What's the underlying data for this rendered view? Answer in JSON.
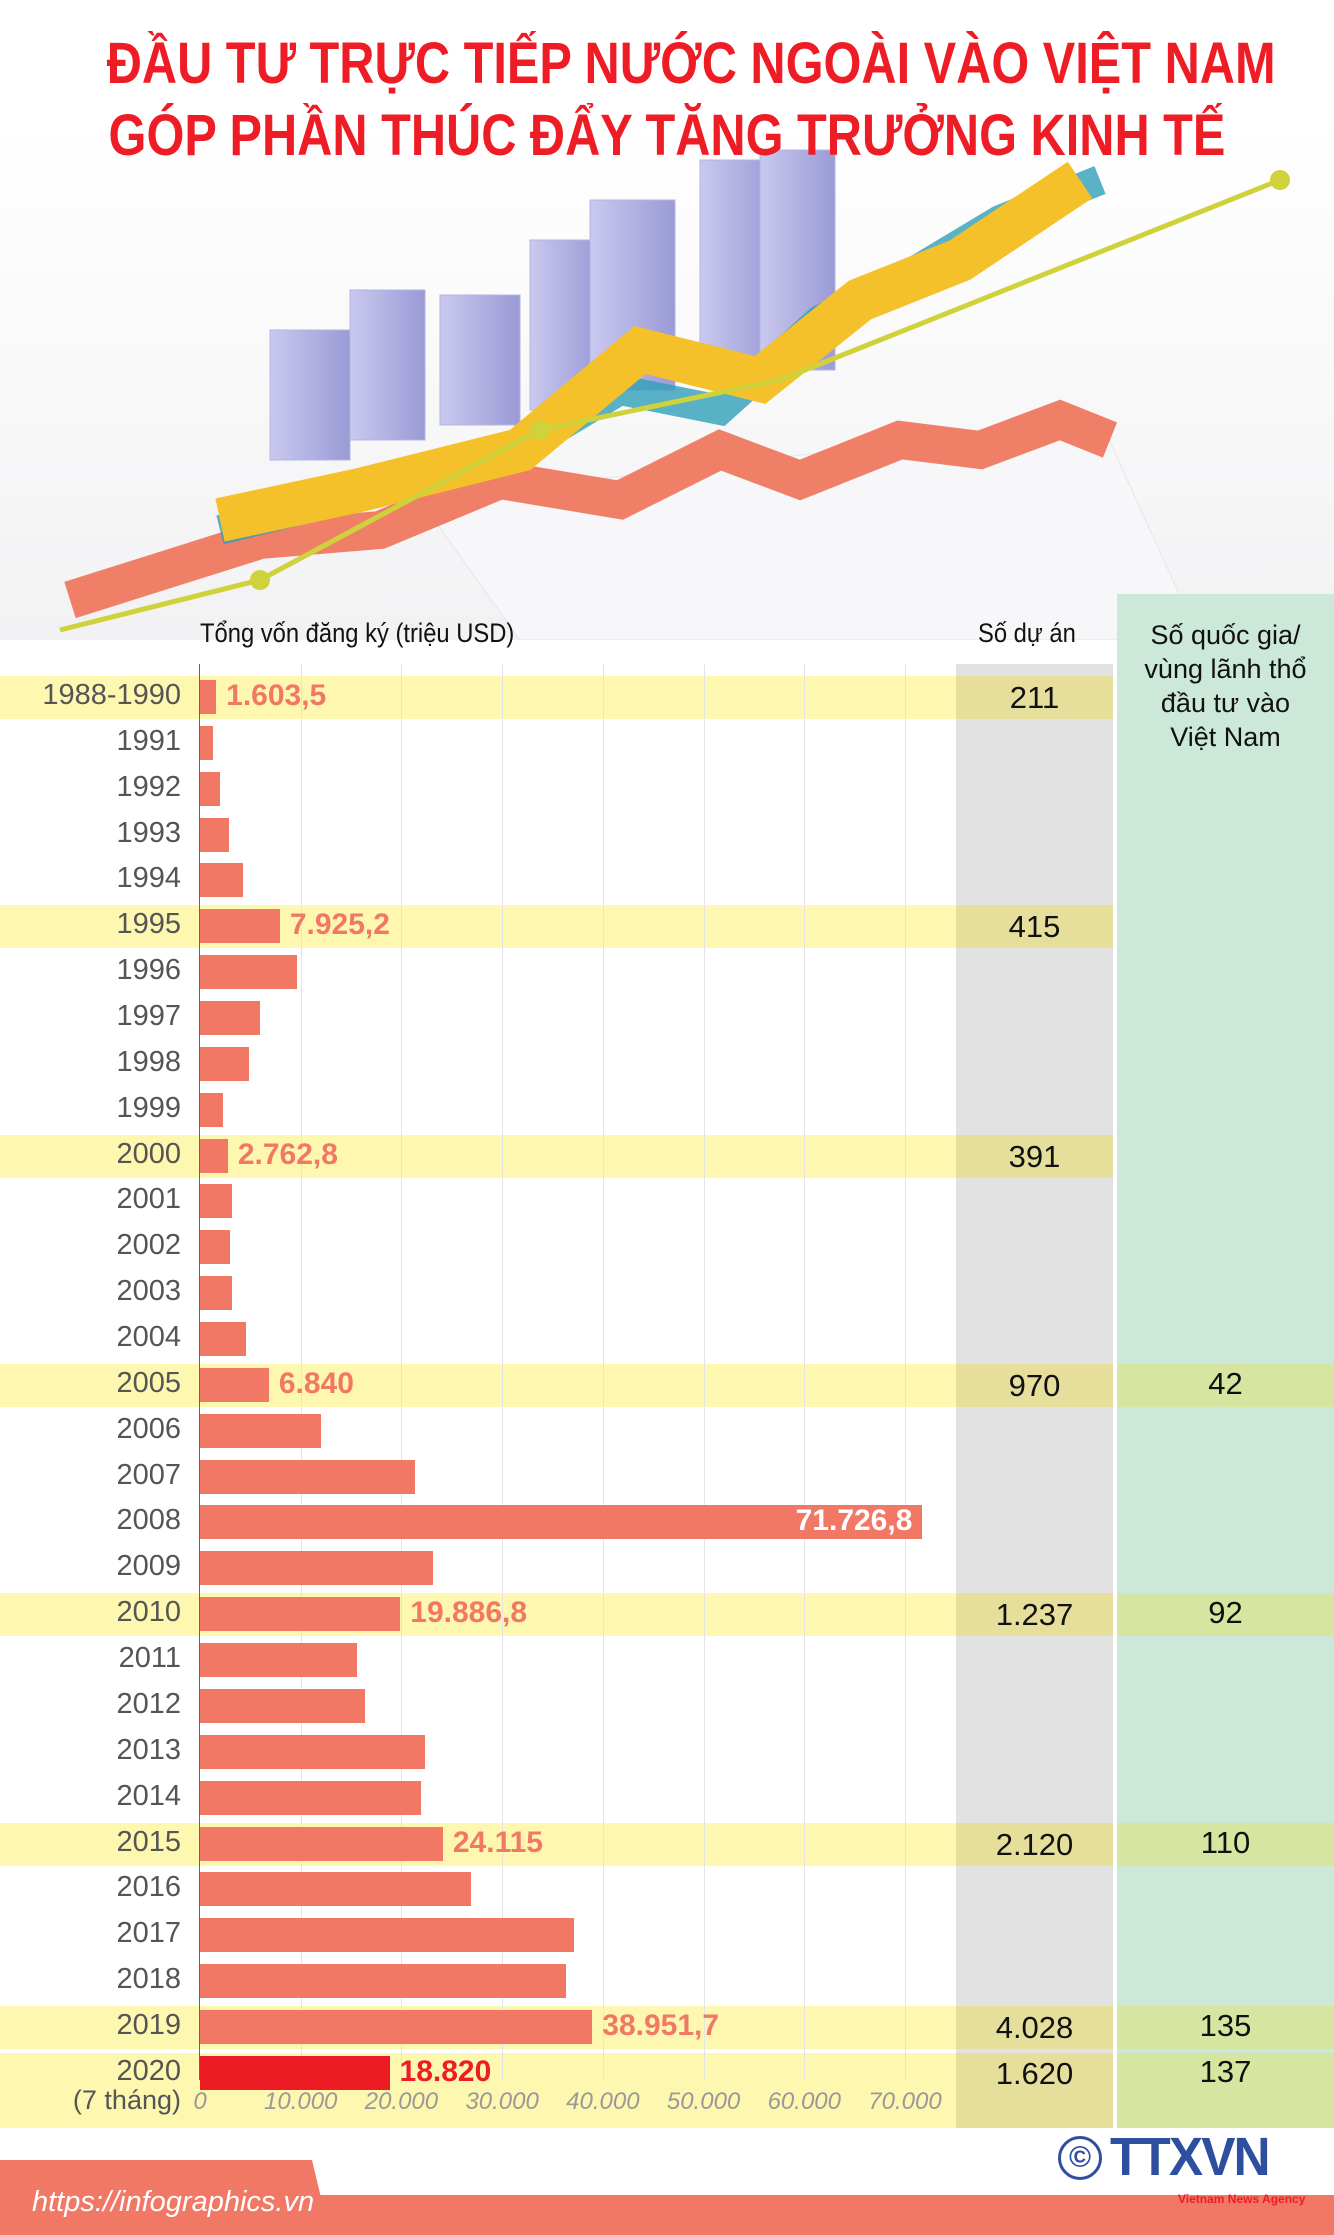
{
  "title": {
    "line1": "ĐẦU TƯ TRỰC TIẾP NƯỚC NGOÀI VÀO VIỆT NAM",
    "line2": "GÓP PHẦN THÚC ĐẨY TĂNG TRƯỞNG KINH TẾ"
  },
  "columns": {
    "capital": "Tổng vốn đăng ký (triệu USD)",
    "projects": "Số dự án",
    "countries": [
      "Số quốc gia/",
      "vùng lãnh thổ",
      "đầu tư vào",
      "Việt Nam"
    ]
  },
  "colors": {
    "bar": "#f27866",
    "bar_current": "#ed1c24",
    "title": "#ee1c25",
    "highlight": "#fef7b0"
  },
  "chart_data": {
    "type": "bar",
    "orientation": "horizontal",
    "title": "Tổng vốn đăng ký (triệu USD)",
    "xlim": [
      0,
      70000
    ],
    "xticks": [
      "0",
      "10.000",
      "20.000",
      "30.000",
      "40.000",
      "50.000",
      "60.000",
      "70.000"
    ],
    "xtick_values": [
      0,
      10000,
      20000,
      30000,
      40000,
      50000,
      60000,
      70000
    ],
    "grid": true,
    "rows": [
      {
        "label": "1988-1990",
        "value": 1603.5,
        "value_label": "1.603,5",
        "projects": "211",
        "highlight": true
      },
      {
        "label": "1991",
        "value": 1275
      },
      {
        "label": "1992",
        "value": 2027
      },
      {
        "label": "1993",
        "value": 2830
      },
      {
        "label": "1994",
        "value": 4262
      },
      {
        "label": "1995",
        "value": 7925.2,
        "value_label": "7.925,2",
        "projects": "415",
        "highlight": true
      },
      {
        "label": "1996",
        "value": 9635
      },
      {
        "label": "1997",
        "value": 5955
      },
      {
        "label": "1998",
        "value": 4873
      },
      {
        "label": "1999",
        "value": 2282
      },
      {
        "label": "2000",
        "value": 2762.8,
        "value_label": "2.762,8",
        "projects": "391",
        "highlight": true
      },
      {
        "label": "2001",
        "value": 3143
      },
      {
        "label": "2002",
        "value": 2998
      },
      {
        "label": "2003",
        "value": 3191
      },
      {
        "label": "2004",
        "value": 4548
      },
      {
        "label": "2005",
        "value": 6840,
        "value_label": "6.840",
        "projects": "970",
        "countries": "42",
        "highlight": true
      },
      {
        "label": "2006",
        "value": 12004
      },
      {
        "label": "2007",
        "value": 21348
      },
      {
        "label": "2008",
        "value": 71726.8,
        "value_label": "71.726,8",
        "inside": true
      },
      {
        "label": "2009",
        "value": 23107
      },
      {
        "label": "2010",
        "value": 19886.8,
        "value_label": "19.886,8",
        "projects": "1.237",
        "countries": "92",
        "highlight": true
      },
      {
        "label": "2011",
        "value": 15598
      },
      {
        "label": "2012",
        "value": 16348
      },
      {
        "label": "2013",
        "value": 22352
      },
      {
        "label": "2014",
        "value": 21922
      },
      {
        "label": "2015",
        "value": 24115,
        "value_label": "24.115",
        "projects": "2.120",
        "countries": "110",
        "highlight": true
      },
      {
        "label": "2016",
        "value": 26890
      },
      {
        "label": "2017",
        "value": 37100
      },
      {
        "label": "2018",
        "value": 36368
      },
      {
        "label": "2019",
        "value": 38951.7,
        "value_label": "38.951,7",
        "projects": "4.028",
        "countries": "135",
        "highlight": true
      },
      {
        "label": "2020",
        "sublabel": "(7 tháng)",
        "value": 18820,
        "value_label": "18.820",
        "projects": "1.620",
        "countries": "137",
        "highlight": true,
        "current": true
      }
    ]
  },
  "footer": {
    "url": "https://infographics.vn",
    "copyright": "©",
    "logo": "TTXVN",
    "logo_sub": "Vietnam News Agency"
  }
}
